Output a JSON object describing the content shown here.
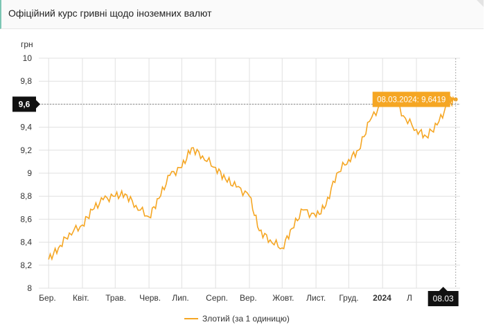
{
  "header": {
    "title": "Офіційний курс гривні щодо іноземних валют"
  },
  "colors": {
    "series": "#f5a623",
    "badge_dark": "#111111",
    "grid": "#e0e0e0"
  },
  "chart_data": {
    "type": "line",
    "ylabel": "грн",
    "ylim": [
      8,
      10
    ],
    "y_ticks": [
      "10",
      "9,8",
      "9,6",
      "9,4",
      "9,2",
      "9",
      "8,8",
      "8,6",
      "8,4",
      "8,2",
      "8"
    ],
    "x_ticks": [
      "Бер.",
      "Квіт.",
      "Трав.",
      "Черв.",
      "Лип.",
      "Серп.",
      "Вер.",
      "Жовт.",
      "Лист.",
      "Груд.",
      "2024",
      "Л"
    ],
    "grid": true,
    "legend_position": "bottom",
    "series": [
      {
        "name": "Злотий (за 1 одиницю)",
        "x": [
          "2023-03-01",
          "2023-03-10",
          "2023-03-20",
          "2023-04-01",
          "2023-04-10",
          "2023-04-20",
          "2023-05-01",
          "2023-05-10",
          "2023-05-20",
          "2023-06-01",
          "2023-06-10",
          "2023-06-20",
          "2023-07-01",
          "2023-07-10",
          "2023-07-20",
          "2023-08-01",
          "2023-08-10",
          "2023-08-20",
          "2023-09-01",
          "2023-09-10",
          "2023-09-20",
          "2023-10-01",
          "2023-10-10",
          "2023-10-20",
          "2023-11-01",
          "2023-11-10",
          "2023-11-20",
          "2023-12-01",
          "2023-12-10",
          "2023-12-20",
          "2024-01-01",
          "2024-01-10",
          "2024-01-20",
          "2024-02-01",
          "2024-02-10",
          "2024-02-20",
          "2024-03-01",
          "2024-03-08"
        ],
        "y": [
          8.25,
          8.35,
          8.48,
          8.55,
          8.68,
          8.77,
          8.8,
          8.82,
          8.72,
          8.62,
          8.78,
          8.98,
          9.05,
          9.22,
          9.15,
          9.05,
          8.95,
          8.88,
          8.8,
          8.5,
          8.42,
          8.35,
          8.52,
          8.68,
          8.62,
          8.72,
          9.0,
          9.12,
          9.2,
          9.45,
          9.62,
          9.68,
          9.5,
          9.38,
          9.32,
          9.42,
          9.6,
          9.6419
        ]
      }
    ],
    "annotations": {
      "crosshair_label": "9,6",
      "tooltip": "08.03.2024: 9,6419",
      "current_date": "08.03"
    }
  },
  "legend": {
    "label": "Злотий (за 1 одиницю)"
  }
}
